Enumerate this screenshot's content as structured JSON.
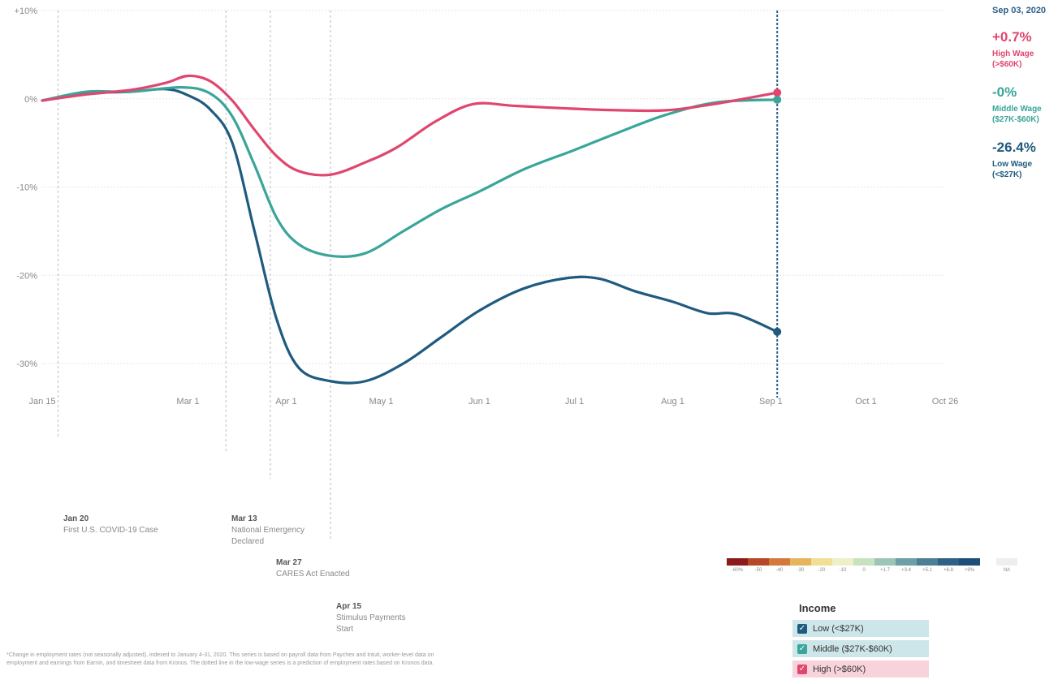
{
  "readout": {
    "date": "Sep 03, 2020",
    "high": {
      "value": "+0.7%",
      "label1": "High Wage",
      "label2": "(>$60K)"
    },
    "middle": {
      "value": "-0%",
      "label1": "Middle Wage",
      "label2": "($27K-$60K)"
    },
    "low": {
      "value": "-26.4%",
      "label1": "Low Wage",
      "label2": "(<$27K)"
    }
  },
  "events": [
    {
      "date": "Jan 20",
      "text": "First U.S. COVID-19 Case"
    },
    {
      "date": "Mar 13",
      "text": "National Emergency",
      "text2": "Declared"
    },
    {
      "date": "Mar 27",
      "text": "CARES Act Enacted"
    },
    {
      "date": "Apr 15",
      "text": "Stimulus Payments",
      "text2": "Start"
    }
  ],
  "footnote": "*Change in employment rates (not seasonally adjusted), indexed to January 4-31, 2020. This series is based on payroll data from Paychex and Intuit, worker-level data on employment and earnings from Earnin, and timesheet data from Kronos. The dotted line in the low-wage series is a prediction of employment rates based on Kronos data.",
  "scale": {
    "colors": [
      "#8b1a1a",
      "#b8472a",
      "#d37a3a",
      "#e6b45c",
      "#f1df95",
      "#eef0c6",
      "#c7e1c1",
      "#9cc5b5",
      "#6e9fa6",
      "#4c7f95",
      "#2d6186",
      "#1c4e78",
      "#eeeeee"
    ],
    "labels": [
      "-60%",
      "-50",
      "-40",
      "-30",
      "-20",
      "-10",
      "0",
      "+1.7",
      "+3.4",
      "+5.1",
      "+6.8",
      "+9%",
      "NA"
    ]
  },
  "legend": {
    "title": "Income",
    "items": [
      {
        "label": "Low (<$27K)",
        "color": "#1f5b7e",
        "bg": "#cde6ea"
      },
      {
        "label": "Middle ($27K-$60K)",
        "color": "#3aa59a",
        "bg": "#cde6ea"
      },
      {
        "label": "High (>$60K)",
        "color": "#e0466e",
        "bg": "#f8d3dc"
      }
    ]
  },
  "chart_data": {
    "type": "line",
    "title": "",
    "xlabel": "",
    "ylabel": "",
    "ylim": [
      -30,
      10
    ],
    "x_ticks": [
      "Jan 15",
      "Mar 1",
      "Apr 1",
      "May 1",
      "Jun 1",
      "Jul 1",
      "Aug 1",
      "Sep 1",
      "Oct 1",
      "Oct 26"
    ],
    "y_ticks": [
      "+10%",
      "0%",
      "-10%",
      "-20%",
      "-30%"
    ],
    "y_tick_values": [
      10,
      0,
      -10,
      -20,
      -30
    ],
    "x_range": [
      "2020-01-15",
      "2020-10-26"
    ],
    "event_dates": [
      "2020-01-20",
      "2020-03-13",
      "2020-03-27",
      "2020-04-15"
    ],
    "cursor_date": "2020-09-03",
    "series": [
      {
        "name": "High Wage (>$60K)",
        "color": "#e0466e",
        "points": [
          [
            "2020-01-15",
            -0.2
          ],
          [
            "2020-01-29",
            0.5
          ],
          [
            "2020-02-12",
            1.0
          ],
          [
            "2020-02-23",
            1.8
          ],
          [
            "2020-03-01",
            2.6
          ],
          [
            "2020-03-08",
            2.0
          ],
          [
            "2020-03-15",
            -0.2
          ],
          [
            "2020-03-22",
            -3.5
          ],
          [
            "2020-03-29",
            -6.5
          ],
          [
            "2020-04-05",
            -8.2
          ],
          [
            "2020-04-15",
            -8.6
          ],
          [
            "2020-04-26",
            -7.2
          ],
          [
            "2020-05-06",
            -5.5
          ],
          [
            "2020-05-18",
            -2.6
          ],
          [
            "2020-05-30",
            -0.6
          ],
          [
            "2020-06-12",
            -0.8
          ],
          [
            "2020-06-29",
            -1.1
          ],
          [
            "2020-07-15",
            -1.3
          ],
          [
            "2020-07-30",
            -1.3
          ],
          [
            "2020-08-14",
            -0.6
          ],
          [
            "2020-09-03",
            0.7
          ]
        ]
      },
      {
        "name": "Middle Wage ($27K-$60K)",
        "color": "#3aa59a",
        "points": [
          [
            "2020-01-15",
            -0.2
          ],
          [
            "2020-01-29",
            0.8
          ],
          [
            "2020-02-12",
            0.8
          ],
          [
            "2020-02-28",
            1.3
          ],
          [
            "2020-03-08",
            0.6
          ],
          [
            "2020-03-15",
            -2.0
          ],
          [
            "2020-03-22",
            -7.5
          ],
          [
            "2020-03-29",
            -13.5
          ],
          [
            "2020-04-05",
            -16.5
          ],
          [
            "2020-04-15",
            -17.8
          ],
          [
            "2020-04-26",
            -17.5
          ],
          [
            "2020-05-08",
            -15.0
          ],
          [
            "2020-05-20",
            -12.5
          ],
          [
            "2020-06-01",
            -10.5
          ],
          [
            "2020-06-15",
            -8.0
          ],
          [
            "2020-07-01",
            -5.8
          ],
          [
            "2020-07-15",
            -3.8
          ],
          [
            "2020-07-30",
            -1.8
          ],
          [
            "2020-08-15",
            -0.4
          ],
          [
            "2020-09-03",
            -0.1
          ]
        ]
      },
      {
        "name": "Low Wage (<$27K)",
        "color": "#1f5b7e",
        "points": [
          [
            "2020-01-15",
            -0.2
          ],
          [
            "2020-01-29",
            0.6
          ],
          [
            "2020-02-12",
            0.8
          ],
          [
            "2020-02-23",
            1.1
          ],
          [
            "2020-03-01",
            0.4
          ],
          [
            "2020-03-08",
            -1.2
          ],
          [
            "2020-03-15",
            -5.0
          ],
          [
            "2020-03-22",
            -15.0
          ],
          [
            "2020-03-29",
            -25.0
          ],
          [
            "2020-04-05",
            -30.5
          ],
          [
            "2020-04-15",
            -32.0
          ],
          [
            "2020-04-26",
            -32.0
          ],
          [
            "2020-05-08",
            -30.0
          ],
          [
            "2020-05-20",
            -27.0
          ],
          [
            "2020-06-01",
            -24.0
          ],
          [
            "2020-06-15",
            -21.5
          ],
          [
            "2020-06-29",
            -20.3
          ],
          [
            "2020-07-09",
            -20.4
          ],
          [
            "2020-07-20",
            -21.8
          ],
          [
            "2020-08-01",
            -23.0
          ],
          [
            "2020-08-12",
            -24.3
          ],
          [
            "2020-08-21",
            -24.4
          ],
          [
            "2020-09-03",
            -26.4
          ]
        ]
      }
    ]
  }
}
